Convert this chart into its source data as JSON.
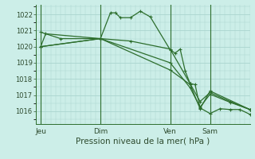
{
  "title": "Pression niveau de la mer( hPa )",
  "bg_color": "#cceee8",
  "grid_color": "#aad4ce",
  "line_color": "#2d6e2d",
  "ylim": [
    1015.2,
    1022.6
  ],
  "yticks": [
    1016,
    1017,
    1018,
    1019,
    1020,
    1021,
    1022
  ],
  "xlabel_fontsize": 7.5,
  "ytick_fontsize": 6.0,
  "xtick_fontsize": 6.5,
  "xtick_labels": [
    "Jeu",
    "Dim",
    "Ven",
    "Sam"
  ],
  "xtick_positions": [
    0,
    12,
    26,
    34
  ],
  "vline_positions": [
    0,
    12,
    26,
    34
  ],
  "xlim": [
    -1,
    42
  ],
  "series": [
    {
      "x": [
        0,
        1,
        12,
        14,
        15,
        16,
        18,
        20,
        22,
        26,
        27,
        28,
        29,
        30,
        31,
        32,
        34,
        36,
        38,
        40,
        42
      ],
      "y": [
        1020.0,
        1020.8,
        1020.5,
        1022.1,
        1022.1,
        1021.8,
        1021.8,
        1022.2,
        1021.85,
        1019.8,
        1019.6,
        1019.85,
        1018.5,
        1017.7,
        1017.65,
        1016.2,
        1015.85,
        1016.15,
        1016.1,
        1016.1,
        1015.8
      ]
    },
    {
      "x": [
        0,
        4,
        12,
        18,
        26,
        30,
        32,
        34,
        38,
        42
      ],
      "y": [
        1020.9,
        1020.5,
        1020.5,
        1020.35,
        1019.85,
        1017.7,
        1016.6,
        1017.15,
        1016.6,
        1016.1
      ]
    },
    {
      "x": [
        0,
        12,
        26,
        30,
        32,
        34,
        42
      ],
      "y": [
        1020.0,
        1020.5,
        1018.55,
        1017.65,
        1016.15,
        1017.25,
        1016.1
      ]
    },
    {
      "x": [
        0,
        12,
        26,
        30,
        32,
        34,
        38,
        42
      ],
      "y": [
        1020.0,
        1020.5,
        1019.0,
        1017.45,
        1016.25,
        1017.05,
        1016.55,
        1016.1
      ]
    }
  ]
}
